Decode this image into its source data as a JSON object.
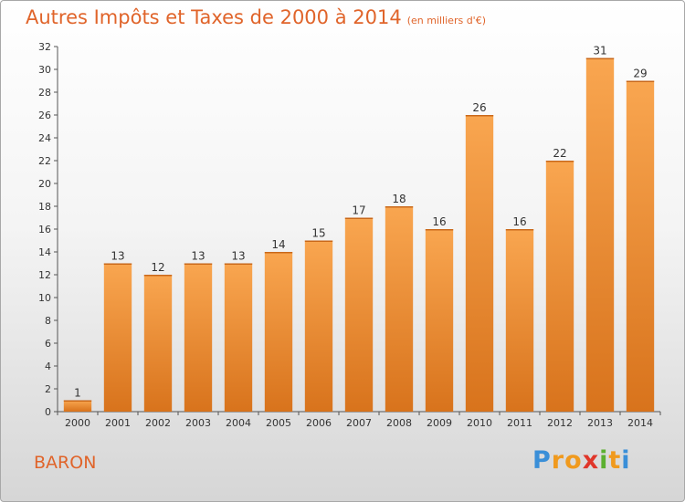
{
  "chart_data": {
    "type": "bar",
    "title": "Autres Impôts et Taxes de 2000 à 2014",
    "unit": "(en milliers d'€)",
    "categories": [
      "2000",
      "2001",
      "2002",
      "2003",
      "2004",
      "2005",
      "2006",
      "2007",
      "2008",
      "2009",
      "2010",
      "2011",
      "2012",
      "2013",
      "2014"
    ],
    "values": [
      1,
      13,
      12,
      13,
      13,
      14,
      15,
      17,
      18,
      16,
      26,
      16,
      22,
      31,
      29
    ],
    "ylim": [
      0,
      32
    ],
    "yticks": [
      0,
      2,
      4,
      6,
      8,
      10,
      12,
      14,
      16,
      18,
      20,
      22,
      24,
      26,
      28,
      30,
      32
    ],
    "xlabel": "",
    "ylabel": "",
    "grid": false,
    "legend": "none",
    "bar_color": "#f0922f"
  },
  "commune": "BARON",
  "logo": {
    "letters": [
      "P",
      "r",
      "o",
      "x",
      "i",
      "t",
      "i"
    ],
    "colors": [
      "#3a8fd8",
      "#f09a1e",
      "#f09a1e",
      "#e0362a",
      "#5cb030",
      "#f09a1e",
      "#3a8fd8"
    ]
  },
  "colors": {
    "title": "#e0642a",
    "axis": "#555555"
  }
}
